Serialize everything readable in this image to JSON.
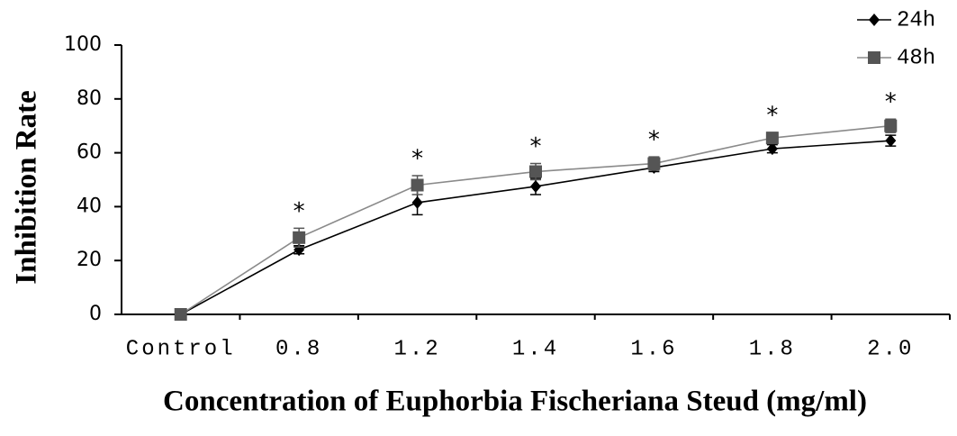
{
  "chart_data": {
    "type": "line",
    "xlabel": "Concentration of Euphorbia Fischeriana Steud (mg/ml)",
    "ylabel": "Inhibition Rate",
    "categories": [
      "Control",
      "0.8",
      "1.2",
      "1.4",
      "1.6",
      "1.8",
      "2.0"
    ],
    "series": [
      {
        "name": "24h",
        "color": "#000000",
        "marker": "diamond",
        "values": [
          0,
          24,
          41.5,
          47.5,
          54.5,
          61.5,
          64.5
        ],
        "error": [
          0,
          1.5,
          4.5,
          3,
          1.5,
          1.5,
          2
        ]
      },
      {
        "name": "48h",
        "color": "#555555",
        "marker": "square",
        "values": [
          0,
          28.5,
          48,
          53,
          56,
          65.5,
          70
        ],
        "error": [
          0,
          3.5,
          3.5,
          3,
          2.5,
          2,
          2.5
        ]
      }
    ],
    "annotations": [
      null,
      "*",
      "*",
      "*",
      "*",
      "*",
      "*"
    ],
    "ylim": [
      0,
      100
    ],
    "yticks": [
      0,
      20,
      40,
      60,
      80,
      100
    ],
    "legend": "upper right"
  }
}
